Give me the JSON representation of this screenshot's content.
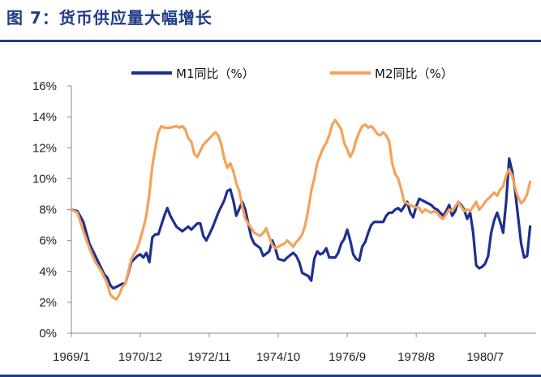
{
  "figure": {
    "title": "图 7：货币供应量大幅增长"
  },
  "colors": {
    "m1": "#1F2F8F",
    "m2": "#F4A259",
    "title": "#1F3C88",
    "axis": "#888888"
  },
  "chart_data": {
    "type": "line",
    "title": "图 7：货币供应量大幅增长",
    "xlabel": "",
    "ylabel": "",
    "ylim": [
      0,
      16
    ],
    "x_range": [
      "1969/1",
      "1981/12"
    ],
    "x_ticks": [
      {
        "label": "1969/1",
        "t": 0
      },
      {
        "label": "1970/12",
        "t": 23
      },
      {
        "label": "1972/11",
        "t": 46
      },
      {
        "label": "1974/10",
        "t": 69
      },
      {
        "label": "1976/9",
        "t": 92
      },
      {
        "label": "1978/8",
        "t": 115
      },
      {
        "label": "1980/7",
        "t": 138
      }
    ],
    "y_ticks": [
      "0%",
      "2%",
      "4%",
      "6%",
      "8%",
      "10%",
      "12%",
      "14%",
      "16%"
    ],
    "legend_position": "top-center",
    "grid": false,
    "series": [
      {
        "name": "M1同比（%）",
        "points": [
          [
            0,
            8
          ],
          [
            2,
            7.9
          ],
          [
            4,
            7.2
          ],
          [
            6,
            5.8
          ],
          [
            8,
            5
          ],
          [
            10,
            4.2
          ],
          [
            11,
            3.8
          ],
          [
            12,
            3.6
          ],
          [
            13,
            3.1
          ],
          [
            14,
            2.9
          ],
          [
            16,
            3.1
          ],
          [
            17,
            3.2
          ],
          [
            18,
            3.2
          ],
          [
            20,
            4.6
          ],
          [
            22,
            5
          ],
          [
            23,
            5.1
          ],
          [
            24,
            4.9
          ],
          [
            25,
            5.2
          ],
          [
            26,
            4.6
          ],
          [
            27,
            6.2
          ],
          [
            28,
            6.4
          ],
          [
            29,
            6.4
          ],
          [
            31,
            7.6
          ],
          [
            32,
            8.1
          ],
          [
            33,
            7.6
          ],
          [
            35,
            6.9
          ],
          [
            37,
            6.6
          ],
          [
            39,
            6.9
          ],
          [
            40,
            6.7
          ],
          [
            42,
            7.1
          ],
          [
            43,
            7.1
          ],
          [
            44,
            6.3
          ],
          [
            45,
            6
          ],
          [
            47,
            6.8
          ],
          [
            49,
            7.8
          ],
          [
            51,
            8.6
          ],
          [
            52,
            9.2
          ],
          [
            53,
            9.3
          ],
          [
            54,
            8.6
          ],
          [
            55,
            7.6
          ],
          [
            57,
            8.5
          ],
          [
            58,
            8
          ],
          [
            60,
            6.2
          ],
          [
            61,
            5.8
          ],
          [
            63,
            5.5
          ],
          [
            64,
            5
          ],
          [
            66,
            5.3
          ],
          [
            67,
            6
          ],
          [
            68,
            5.5
          ],
          [
            69,
            4.8
          ],
          [
            71,
            4.7
          ],
          [
            72,
            4.9
          ],
          [
            74,
            5.2
          ],
          [
            75,
            5
          ],
          [
            76,
            4.6
          ],
          [
            77,
            3.9
          ],
          [
            79,
            3.7
          ],
          [
            80,
            3.4
          ],
          [
            81,
            4.8
          ],
          [
            82,
            5.3
          ],
          [
            83,
            5.1
          ],
          [
            84,
            5.2
          ],
          [
            85,
            5.5
          ],
          [
            86,
            4.9
          ],
          [
            88,
            4.9
          ],
          [
            89,
            5.2
          ],
          [
            90,
            5.8
          ],
          [
            91,
            6.1
          ],
          [
            92,
            6.7
          ],
          [
            93,
            6
          ],
          [
            94,
            5.1
          ],
          [
            95,
            4.8
          ],
          [
            96,
            4.7
          ],
          [
            97,
            5.6
          ],
          [
            98,
            5.9
          ],
          [
            99,
            6.5
          ],
          [
            100,
            7
          ],
          [
            101,
            7.2
          ],
          [
            102,
            7.2
          ],
          [
            104,
            7.2
          ],
          [
            105,
            7.6
          ],
          [
            106,
            7.8
          ],
          [
            107,
            7.8
          ],
          [
            108,
            8
          ],
          [
            109,
            8.1
          ],
          [
            110,
            7.9
          ],
          [
            111,
            8.2
          ],
          [
            112,
            8.5
          ],
          [
            113,
            7.8
          ],
          [
            114,
            7.5
          ],
          [
            115,
            8.2
          ],
          [
            116,
            8.7
          ],
          [
            117,
            8.6
          ],
          [
            118,
            8.5
          ],
          [
            120,
            8.3
          ],
          [
            121,
            8.1
          ],
          [
            122,
            8
          ],
          [
            123,
            7.8
          ],
          [
            124,
            7.6
          ],
          [
            125,
            7.9
          ],
          [
            126,
            8.3
          ],
          [
            127,
            7.6
          ],
          [
            128,
            7.9
          ],
          [
            129,
            8.5
          ],
          [
            130,
            8.3
          ],
          [
            131,
            8
          ],
          [
            132,
            7.4
          ],
          [
            133,
            7.8
          ],
          [
            134,
            6.5
          ],
          [
            135,
            4.4
          ],
          [
            136,
            4.2
          ],
          [
            137,
            4.3
          ],
          [
            138,
            4.5
          ],
          [
            139,
            5
          ],
          [
            140,
            6.5
          ],
          [
            141,
            7.3
          ],
          [
            142,
            7.8
          ],
          [
            143,
            7.2
          ],
          [
            144,
            6.5
          ],
          [
            145,
            8.5
          ],
          [
            146,
            11.3
          ],
          [
            147,
            10.5
          ],
          [
            148,
            9.2
          ],
          [
            149,
            7.5
          ],
          [
            150,
            5.8
          ],
          [
            151,
            4.9
          ],
          [
            152,
            5
          ],
          [
            153,
            6.9
          ]
        ]
      },
      {
        "name": "M2同比（%）",
        "points": [
          [
            0,
            8
          ],
          [
            2,
            7.8
          ],
          [
            4,
            6.6
          ],
          [
            6,
            5.5
          ],
          [
            8,
            4.6
          ],
          [
            10,
            4
          ],
          [
            12,
            3.2
          ],
          [
            13,
            2.5
          ],
          [
            14,
            2.3
          ],
          [
            15,
            2.2
          ],
          [
            16,
            2.5
          ],
          [
            17,
            3
          ],
          [
            18,
            3.2
          ],
          [
            19,
            4
          ],
          [
            20,
            4.8
          ],
          [
            22,
            5.5
          ],
          [
            23,
            6.1
          ],
          [
            24,
            6.8
          ],
          [
            25,
            7.6
          ],
          [
            26,
            9
          ],
          [
            27,
            10.8
          ],
          [
            28,
            12
          ],
          [
            29,
            13
          ],
          [
            30,
            13.4
          ],
          [
            31,
            13.3
          ],
          [
            32,
            13.3
          ],
          [
            33,
            13.3
          ],
          [
            35,
            13.4
          ],
          [
            36,
            13.3
          ],
          [
            37,
            13.4
          ],
          [
            38,
            13.2
          ],
          [
            39,
            12.6
          ],
          [
            40,
            12.4
          ],
          [
            41,
            11.6
          ],
          [
            42,
            11.4
          ],
          [
            43,
            11.8
          ],
          [
            44,
            12.2
          ],
          [
            45,
            12.4
          ],
          [
            46,
            12.6
          ],
          [
            47,
            12.8
          ],
          [
            48,
            13
          ],
          [
            49,
            12.8
          ],
          [
            50,
            12.2
          ],
          [
            51,
            11.3
          ],
          [
            52,
            10.7
          ],
          [
            53,
            11
          ],
          [
            54,
            10.5
          ],
          [
            55,
            9.7
          ],
          [
            56,
            9.2
          ],
          [
            57,
            8.2
          ],
          [
            58,
            7.4
          ],
          [
            60,
            6.8
          ],
          [
            61,
            6.5
          ],
          [
            62,
            6.4
          ],
          [
            63,
            6.3
          ],
          [
            64,
            6.5
          ],
          [
            65,
            6.8
          ],
          [
            66,
            6.2
          ],
          [
            67,
            5.7
          ],
          [
            68,
            5.5
          ],
          [
            69,
            5.6
          ],
          [
            70,
            5.7
          ],
          [
            71,
            5.8
          ],
          [
            72,
            6
          ],
          [
            73,
            5.8
          ],
          [
            74,
            5.6
          ],
          [
            75,
            5.9
          ],
          [
            76,
            6.1
          ],
          [
            77,
            6.4
          ],
          [
            78,
            7
          ],
          [
            79,
            8
          ],
          [
            80,
            9.2
          ],
          [
            81,
            10
          ],
          [
            82,
            11
          ],
          [
            83,
            11.5
          ],
          [
            84,
            12
          ],
          [
            85,
            12.3
          ],
          [
            86,
            12.8
          ],
          [
            87,
            13.5
          ],
          [
            88,
            13.8
          ],
          [
            89,
            13.5
          ],
          [
            90,
            13.2
          ],
          [
            91,
            12.3
          ],
          [
            92,
            11.9
          ],
          [
            93,
            11.4
          ],
          [
            94,
            11.8
          ],
          [
            95,
            12.5
          ],
          [
            96,
            13
          ],
          [
            97,
            13.4
          ],
          [
            98,
            13.5
          ],
          [
            99,
            13.3
          ],
          [
            100,
            13.4
          ],
          [
            101,
            13.2
          ],
          [
            102,
            12.9
          ],
          [
            103,
            12.8
          ],
          [
            104,
            13
          ],
          [
            105,
            12.8
          ],
          [
            106,
            12.4
          ],
          [
            107,
            11
          ],
          [
            108,
            10.3
          ],
          [
            109,
            10
          ],
          [
            110,
            9.3
          ],
          [
            111,
            8.5
          ],
          [
            112,
            8.4
          ],
          [
            114,
            8.2
          ],
          [
            116,
            8.1
          ],
          [
            117,
            7.8
          ],
          [
            118,
            8
          ],
          [
            119,
            7.9
          ],
          [
            120,
            7.8
          ],
          [
            121,
            7.9
          ],
          [
            122,
            7.8
          ],
          [
            123,
            7.5
          ],
          [
            124,
            7.4
          ],
          [
            125,
            7.7
          ],
          [
            126,
            8
          ],
          [
            127,
            7.9
          ],
          [
            128,
            8.2
          ],
          [
            129,
            8.5
          ],
          [
            130,
            8.2
          ],
          [
            131,
            7.9
          ],
          [
            132,
            8
          ],
          [
            133,
            7.9
          ],
          [
            134,
            8.2
          ],
          [
            135,
            8.5
          ],
          [
            136,
            8
          ],
          [
            137,
            8.2
          ],
          [
            138,
            8.5
          ],
          [
            139,
            8.7
          ],
          [
            140,
            8.9
          ],
          [
            141,
            9.1
          ],
          [
            142,
            8.9
          ],
          [
            143,
            9.3
          ],
          [
            144,
            9.5
          ],
          [
            145,
            10.2
          ],
          [
            146,
            10.6
          ],
          [
            147,
            10.2
          ],
          [
            148,
            9.4
          ],
          [
            149,
            8.8
          ],
          [
            150,
            8.4
          ],
          [
            151,
            8.6
          ],
          [
            152,
            9
          ],
          [
            153,
            9.8
          ]
        ]
      }
    ]
  }
}
